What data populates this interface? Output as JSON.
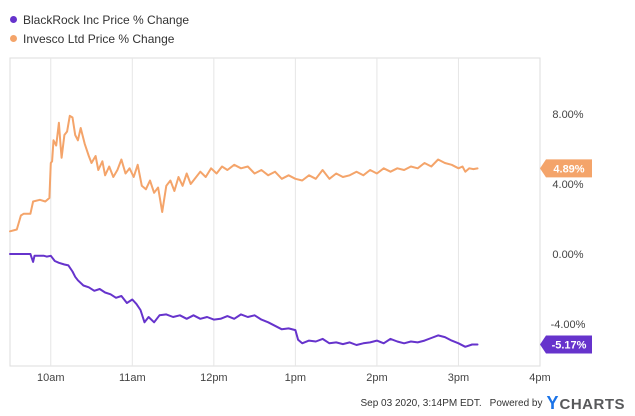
{
  "chart_data": {
    "type": "line",
    "x_ticks": [
      "10am",
      "11am",
      "12pm",
      "1pm",
      "2pm",
      "3pm",
      "4pm"
    ],
    "y_ticks": [
      "8.00%",
      "4.00%",
      "0.00%",
      "-4.00%"
    ],
    "y_tick_values": [
      8,
      4,
      0,
      -4
    ],
    "ylim": [
      -6.4,
      11.2
    ],
    "xlim": [
      "09:30",
      "16:00"
    ],
    "grid": true,
    "legend_position": "top-left",
    "series": [
      {
        "name": "BlackRock Inc Price % Change",
        "color": "#6633cc",
        "last_label": "-5.17%",
        "points": [
          [
            "09:30",
            0.0
          ],
          [
            "09:40",
            0.0
          ],
          [
            "09:45",
            0.0
          ],
          [
            "09:47",
            -0.45
          ],
          [
            "09:48",
            -0.1
          ],
          [
            "09:55",
            -0.1
          ],
          [
            "09:57",
            -0.15
          ],
          [
            "10:00",
            -0.1
          ],
          [
            "10:03",
            -0.4
          ],
          [
            "10:06",
            -0.5
          ],
          [
            "10:10",
            -0.6
          ],
          [
            "10:13",
            -0.65
          ],
          [
            "10:16",
            -1.0
          ],
          [
            "10:18",
            -1.3
          ],
          [
            "10:20",
            -1.5
          ],
          [
            "10:24",
            -1.8
          ],
          [
            "10:28",
            -1.9
          ],
          [
            "10:32",
            -2.1
          ],
          [
            "10:36",
            -2.0
          ],
          [
            "10:40",
            -2.2
          ],
          [
            "10:44",
            -2.3
          ],
          [
            "10:48",
            -2.5
          ],
          [
            "10:52",
            -2.4
          ],
          [
            "10:56",
            -2.8
          ],
          [
            "11:00",
            -2.6
          ],
          [
            "11:03",
            -2.85
          ],
          [
            "11:06",
            -3.2
          ],
          [
            "11:09",
            -3.9
          ],
          [
            "11:12",
            -3.6
          ],
          [
            "11:16",
            -3.9
          ],
          [
            "11:20",
            -3.5
          ],
          [
            "11:25",
            -3.45
          ],
          [
            "11:30",
            -3.6
          ],
          [
            "11:35",
            -3.5
          ],
          [
            "11:40",
            -3.7
          ],
          [
            "11:45",
            -3.5
          ],
          [
            "11:50",
            -3.7
          ],
          [
            "11:55",
            -3.6
          ],
          [
            "12:00",
            -3.75
          ],
          [
            "12:05",
            -3.7
          ],
          [
            "12:10",
            -3.55
          ],
          [
            "12:15",
            -3.7
          ],
          [
            "12:20",
            -3.45
          ],
          [
            "12:25",
            -3.6
          ],
          [
            "12:30",
            -3.5
          ],
          [
            "12:35",
            -3.75
          ],
          [
            "12:40",
            -3.9
          ],
          [
            "12:45",
            -4.1
          ],
          [
            "12:50",
            -4.3
          ],
          [
            "12:55",
            -4.25
          ],
          [
            "13:00",
            -4.35
          ],
          [
            "13:02",
            -4.9
          ],
          [
            "13:05",
            -5.1
          ],
          [
            "13:10",
            -4.95
          ],
          [
            "13:15",
            -5.0
          ],
          [
            "13:20",
            -4.85
          ],
          [
            "13:25",
            -5.1
          ],
          [
            "13:30",
            -5.05
          ],
          [
            "13:35",
            -5.15
          ],
          [
            "13:40",
            -5.05
          ],
          [
            "13:45",
            -5.2
          ],
          [
            "13:50",
            -5.1
          ],
          [
            "13:55",
            -5.05
          ],
          [
            "14:00",
            -4.95
          ],
          [
            "14:05",
            -5.1
          ],
          [
            "14:10",
            -4.85
          ],
          [
            "14:15",
            -5.0
          ],
          [
            "14:20",
            -5.1
          ],
          [
            "14:25",
            -5.0
          ],
          [
            "14:30",
            -5.05
          ],
          [
            "14:35",
            -4.95
          ],
          [
            "14:40",
            -4.8
          ],
          [
            "14:45",
            -4.65
          ],
          [
            "14:50",
            -4.75
          ],
          [
            "14:55",
            -4.95
          ],
          [
            "15:00",
            -5.1
          ],
          [
            "15:05",
            -5.3
          ],
          [
            "15:10",
            -5.17
          ],
          [
            "15:14",
            -5.17
          ]
        ]
      },
      {
        "name": "Invesco Ltd Price % Change",
        "color": "#f4a46a",
        "last_label": "4.89%",
        "points": [
          [
            "09:30",
            1.3
          ],
          [
            "09:35",
            1.4
          ],
          [
            "09:38",
            2.2
          ],
          [
            "09:40",
            2.3
          ],
          [
            "09:45",
            2.3
          ],
          [
            "09:47",
            3.0
          ],
          [
            "09:52",
            3.1
          ],
          [
            "09:56",
            3.0
          ],
          [
            "09:59",
            3.2
          ],
          [
            "10:00",
            5.2
          ],
          [
            "10:01",
            5.3
          ],
          [
            "10:02",
            6.5
          ],
          [
            "10:04",
            6.2
          ],
          [
            "10:06",
            7.5
          ],
          [
            "10:07",
            6.4
          ],
          [
            "10:08",
            5.5
          ],
          [
            "10:10",
            6.8
          ],
          [
            "10:12",
            7.0
          ],
          [
            "10:14",
            7.9
          ],
          [
            "10:16",
            7.8
          ],
          [
            "10:18",
            6.8
          ],
          [
            "10:20",
            6.5
          ],
          [
            "10:22",
            7.2
          ],
          [
            "10:25",
            6.3
          ],
          [
            "10:28",
            5.6
          ],
          [
            "10:30",
            5.2
          ],
          [
            "10:33",
            5.6
          ],
          [
            "10:35",
            4.8
          ],
          [
            "10:38",
            5.3
          ],
          [
            "10:40",
            4.5
          ],
          [
            "10:43",
            5.0
          ],
          [
            "10:46",
            4.4
          ],
          [
            "10:49",
            4.8
          ],
          [
            "10:52",
            5.4
          ],
          [
            "10:55",
            4.6
          ],
          [
            "10:58",
            4.9
          ],
          [
            "11:01",
            4.4
          ],
          [
            "11:04",
            5.1
          ],
          [
            "11:07",
            3.9
          ],
          [
            "11:10",
            3.7
          ],
          [
            "11:13",
            4.2
          ],
          [
            "11:16",
            3.5
          ],
          [
            "11:19",
            3.8
          ],
          [
            "11:22",
            2.4
          ],
          [
            "11:25",
            3.9
          ],
          [
            "11:28",
            4.2
          ],
          [
            "11:31",
            3.6
          ],
          [
            "11:34",
            4.4
          ],
          [
            "11:37",
            3.9
          ],
          [
            "11:40",
            4.6
          ],
          [
            "11:43",
            4.0
          ],
          [
            "11:46",
            4.3
          ],
          [
            "11:50",
            4.7
          ],
          [
            "11:54",
            4.4
          ],
          [
            "11:58",
            4.9
          ],
          [
            "12:02",
            4.6
          ],
          [
            "12:06",
            5.0
          ],
          [
            "12:10",
            4.8
          ],
          [
            "12:15",
            5.1
          ],
          [
            "12:20",
            4.9
          ],
          [
            "12:25",
            5.0
          ],
          [
            "12:30",
            4.6
          ],
          [
            "12:35",
            4.8
          ],
          [
            "12:40",
            4.5
          ],
          [
            "12:45",
            4.7
          ],
          [
            "12:50",
            4.3
          ],
          [
            "12:55",
            4.5
          ],
          [
            "13:00",
            4.3
          ],
          [
            "13:05",
            4.2
          ],
          [
            "13:10",
            4.5
          ],
          [
            "13:15",
            4.3
          ],
          [
            "13:20",
            4.8
          ],
          [
            "13:25",
            4.3
          ],
          [
            "13:30",
            4.6
          ],
          [
            "13:35",
            4.4
          ],
          [
            "13:40",
            4.5
          ],
          [
            "13:45",
            4.7
          ],
          [
            "13:50",
            4.5
          ],
          [
            "13:55",
            4.8
          ],
          [
            "14:00",
            4.6
          ],
          [
            "14:05",
            4.9
          ],
          [
            "14:10",
            4.7
          ],
          [
            "14:15",
            4.9
          ],
          [
            "14:20",
            4.8
          ],
          [
            "14:25",
            5.0
          ],
          [
            "14:30",
            4.9
          ],
          [
            "14:35",
            5.2
          ],
          [
            "14:40",
            5.0
          ],
          [
            "14:45",
            5.4
          ],
          [
            "14:50",
            5.2
          ],
          [
            "14:55",
            5.1
          ],
          [
            "15:00",
            4.9
          ],
          [
            "15:03",
            5.0
          ],
          [
            "15:05",
            4.7
          ],
          [
            "15:08",
            4.9
          ],
          [
            "15:11",
            4.85
          ],
          [
            "15:14",
            4.89
          ]
        ]
      }
    ]
  },
  "footer": {
    "timestamp": "Sep 03 2020, 3:14PM EDT.",
    "powered_by": "Powered by",
    "brand_y": "Y",
    "brand_rest": "CHARTS"
  }
}
